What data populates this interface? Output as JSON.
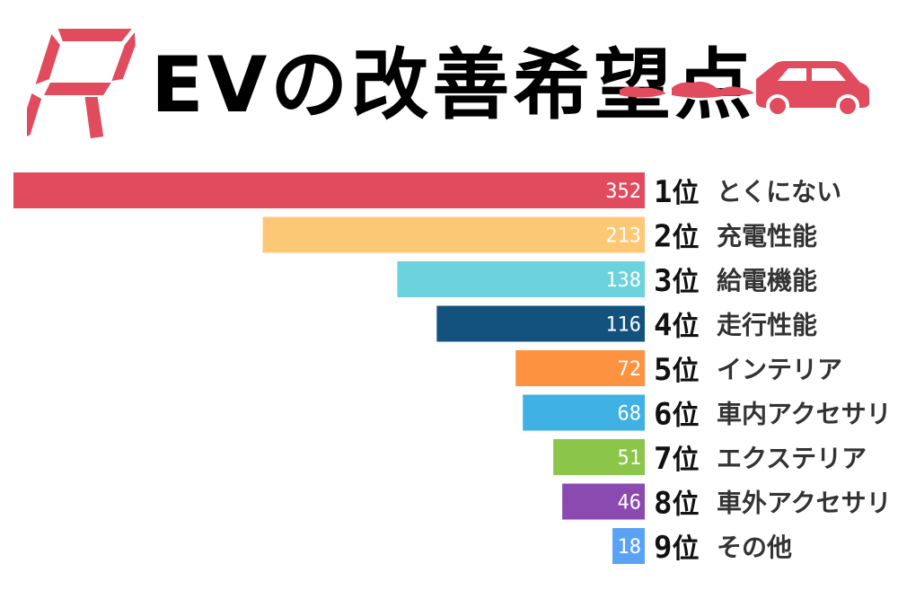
{
  "header": {
    "logo_letter": "R",
    "title": "EVの改善希望点",
    "logo_icon": "segment-r-icon",
    "car_icon": "car-icon"
  },
  "colors": {
    "accent": "#e14b5e",
    "title": "#000000"
  },
  "chart_data": {
    "type": "bar",
    "orientation": "horizontal",
    "title": "EVの改善希望点",
    "xlabel": "",
    "ylabel": "",
    "grid": false,
    "legend": "none",
    "xlim": [
      0,
      352
    ],
    "rank_suffix": "位",
    "categories": [
      "とくにない",
      "充電性能",
      "給電機能",
      "走行性能",
      "インテリア",
      "車内アクセサリ",
      "エクステリア",
      "車外アクセサリ",
      "その他"
    ],
    "ranks": [
      "1",
      "2",
      "3",
      "4",
      "5",
      "6",
      "7",
      "8",
      "9"
    ],
    "values": [
      352,
      213,
      138,
      116,
      72,
      68,
      51,
      46,
      18
    ],
    "colors": [
      "#e14b5e",
      "#fcc875",
      "#6cd3dc",
      "#14527e",
      "#fd9240",
      "#3fb1e4",
      "#8bc54a",
      "#8a4ab0",
      "#5aa2f6"
    ]
  }
}
